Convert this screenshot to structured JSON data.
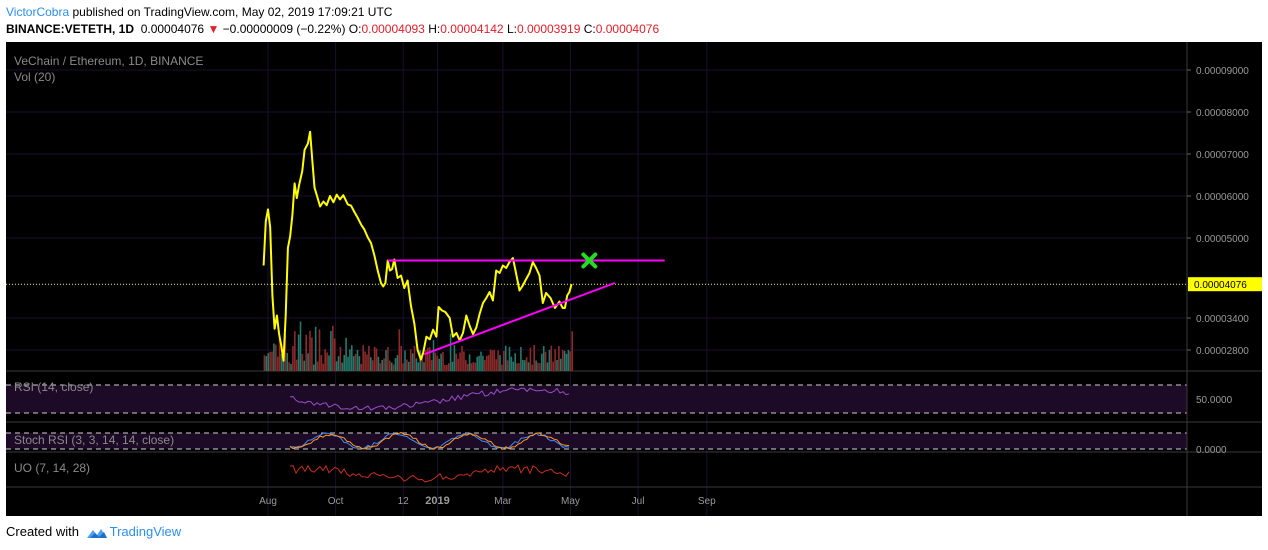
{
  "header": {
    "author": "VictorCobra",
    "published": "published on TradingView.com, May 02, 2019 17:09:21 UTC",
    "symbol": "BINANCE:VETETH, 1D",
    "last": "0.00004076",
    "change": "−0.00000009 (−0.22%)",
    "o_label": "O:",
    "o_value": "0.00004093",
    "h_label": "H:",
    "h_value": "0.00004142",
    "l_label": "L:",
    "l_value": "0.00003919",
    "c_label": "C:",
    "c_value": "0.00004076"
  },
  "pane": {
    "title": "VeChain / Ethereum, 1D, BINANCE",
    "volume_label": "Vol (20)",
    "last_price_tag": "0.00004076"
  },
  "indicators": {
    "rsi": {
      "label": "RSI (14, close)",
      "axis_label": "50.0000"
    },
    "stoch": {
      "label": "Stoch RSI (3, 3, 14, 14, close)",
      "axis_label": "0.0000"
    },
    "uo": {
      "label": "UO (7, 14, 28)"
    }
  },
  "footer": {
    "created_with": "Created with",
    "brand": "TradingView"
  },
  "colors": {
    "background": "#000000",
    "price_line": "#ffff00",
    "trendline": "#ff00ff",
    "target_marker": "#22dd22",
    "volume_up": "#26786b",
    "volume_down": "#8c2a2a",
    "rsi": "#9b4dca",
    "stoch_k": "#3d8cff",
    "stoch_d": "#ff9a1a",
    "uo": "#c4301f"
  },
  "chart_data": {
    "type": "line",
    "title": "VeChain / Ethereum, 1D, BINANCE",
    "y_axis_ticks": [
      "0.00009000",
      "0.00008000",
      "0.00007000",
      "0.00006000",
      "0.00005000",
      "0.00003400",
      "0.00002800"
    ],
    "x_axis_ticks": [
      "Aug",
      "Oct",
      "12",
      "2019",
      "Mar",
      "May",
      "Jul",
      "Sep"
    ],
    "ylim": [
      2.3e-05,
      9.45e-05
    ],
    "grid": true,
    "legend": "none",
    "series": [
      {
        "name": "VeChain / Ethereum",
        "points": [
          [
            "2018-07-28",
            4.45e-05
          ],
          [
            "2018-07-30",
            5.4e-05
          ],
          [
            "2018-08-01",
            5.68e-05
          ],
          [
            "2018-08-03",
            5.25e-05
          ],
          [
            "2018-08-05",
            3.85e-05
          ],
          [
            "2018-08-07",
            3.2e-05
          ],
          [
            "2018-08-09",
            3.45e-05
          ],
          [
            "2018-08-11",
            3.1e-05
          ],
          [
            "2018-08-13",
            2.88e-05
          ],
          [
            "2018-08-15",
            2.6e-05
          ],
          [
            "2018-08-17",
            3.45e-05
          ],
          [
            "2018-08-19",
            4.8e-05
          ],
          [
            "2018-08-21",
            5.05e-05
          ],
          [
            "2018-08-23",
            5.55e-05
          ],
          [
            "2018-08-25",
            6.3e-05
          ],
          [
            "2018-08-27",
            5.95e-05
          ],
          [
            "2018-08-29",
            6.25e-05
          ],
          [
            "2018-09-01",
            6.6e-05
          ],
          [
            "2018-09-03",
            7.1e-05
          ],
          [
            "2018-09-06",
            7.25e-05
          ],
          [
            "2018-09-08",
            7.53e-05
          ],
          [
            "2018-09-10",
            6.85e-05
          ],
          [
            "2018-09-12",
            6.2e-05
          ],
          [
            "2018-09-14",
            6.02e-05
          ],
          [
            "2018-09-17",
            5.75e-05
          ],
          [
            "2018-09-20",
            5.87e-05
          ],
          [
            "2018-09-23",
            5.78e-05
          ],
          [
            "2018-09-26",
            6e-05
          ],
          [
            "2018-09-29",
            5.85e-05
          ],
          [
            "2018-10-02",
            6.03e-05
          ],
          [
            "2018-10-05",
            5.92e-05
          ],
          [
            "2018-10-08",
            6.02e-05
          ],
          [
            "2018-10-12",
            5.8e-05
          ],
          [
            "2018-10-15",
            5.77e-05
          ],
          [
            "2018-10-18",
            5.62e-05
          ],
          [
            "2018-10-21",
            5.48e-05
          ],
          [
            "2018-10-24",
            5.32e-05
          ],
          [
            "2018-10-27",
            5.2e-05
          ],
          [
            "2018-10-30",
            5.02e-05
          ],
          [
            "2018-11-02",
            4.9e-05
          ],
          [
            "2018-11-05",
            4.65e-05
          ],
          [
            "2018-11-08",
            4.35e-05
          ],
          [
            "2018-11-11",
            4.1e-05
          ],
          [
            "2018-11-13",
            4.03e-05
          ],
          [
            "2018-11-15",
            4.1e-05
          ],
          [
            "2018-11-17",
            4.55e-05
          ],
          [
            "2018-11-19",
            4.35e-05
          ],
          [
            "2018-11-21",
            4.38e-05
          ],
          [
            "2018-11-23",
            4.57e-05
          ],
          [
            "2018-11-26",
            4.2e-05
          ],
          [
            "2018-11-29",
            4.25e-05
          ],
          [
            "2018-12-02",
            4e-05
          ],
          [
            "2018-12-05",
            4.15e-05
          ],
          [
            "2018-12-08",
            3.65e-05
          ],
          [
            "2018-12-11",
            3.3e-05
          ],
          [
            "2018-12-14",
            2.8e-05
          ],
          [
            "2018-12-17",
            2.62e-05
          ],
          [
            "2018-12-19",
            2.74e-05
          ],
          [
            "2018-12-22",
            3.05e-05
          ],
          [
            "2018-12-25",
            3e-05
          ],
          [
            "2018-12-28",
            3.18e-05
          ],
          [
            "2018-12-31",
            3.05e-05
          ],
          [
            "2019-01-02",
            3.62e-05
          ],
          [
            "2019-01-05",
            3.55e-05
          ],
          [
            "2019-01-08",
            3.52e-05
          ],
          [
            "2019-01-12",
            3.4e-05
          ],
          [
            "2019-01-15",
            3.05e-05
          ],
          [
            "2019-01-18",
            3.12e-05
          ],
          [
            "2019-01-21",
            2.98e-05
          ],
          [
            "2019-01-24",
            3.12e-05
          ],
          [
            "2019-01-27",
            3.45e-05
          ],
          [
            "2019-01-30",
            3.25e-05
          ],
          [
            "2019-02-02",
            3.1e-05
          ],
          [
            "2019-02-05",
            3.22e-05
          ],
          [
            "2019-02-08",
            3.48e-05
          ],
          [
            "2019-02-11",
            3.7e-05
          ],
          [
            "2019-02-14",
            3.8e-05
          ],
          [
            "2019-02-17",
            3.92e-05
          ],
          [
            "2019-02-20",
            3.75e-05
          ],
          [
            "2019-02-23",
            4.35e-05
          ],
          [
            "2019-02-26",
            4.3e-05
          ],
          [
            "2019-03-01",
            4.45e-05
          ],
          [
            "2019-03-04",
            4.4e-05
          ],
          [
            "2019-03-07",
            4.52e-05
          ],
          [
            "2019-03-10",
            4.6e-05
          ],
          [
            "2019-03-13",
            4.28e-05
          ],
          [
            "2019-03-16",
            3.95e-05
          ],
          [
            "2019-03-19",
            4.05e-05
          ],
          [
            "2019-03-22",
            4.18e-05
          ],
          [
            "2019-03-25",
            4.3e-05
          ],
          [
            "2019-03-28",
            4.52e-05
          ],
          [
            "2019-03-31",
            4.4e-05
          ],
          [
            "2019-04-03",
            4.25e-05
          ],
          [
            "2019-04-06",
            3.7e-05
          ],
          [
            "2019-04-09",
            3.9e-05
          ],
          [
            "2019-04-13",
            3.8e-05
          ],
          [
            "2019-04-17",
            3.6e-05
          ],
          [
            "2019-04-21",
            3.73e-05
          ],
          [
            "2019-04-24",
            3.6e-05
          ],
          [
            "2019-04-26",
            3.6e-05
          ],
          [
            "2019-04-28",
            3.85e-05
          ],
          [
            "2019-04-30",
            3.92e-05
          ],
          [
            "2019-05-02",
            4.076e-05
          ]
        ]
      }
    ],
    "horizontal_lines": [
      {
        "from": "2018-11-17",
        "to": "2019-07-25",
        "value": 4.55e-05
      }
    ],
    "trendlines": [
      {
        "from": "2018-12-20",
        "from_value": 2.72e-05,
        "to": "2019-06-10",
        "to_value": 4.1e-05
      }
    ],
    "markers": [
      {
        "type": "x",
        "date": "2019-05-18",
        "value": 4.55e-05
      }
    ],
    "last_price": 4.076e-05
  }
}
